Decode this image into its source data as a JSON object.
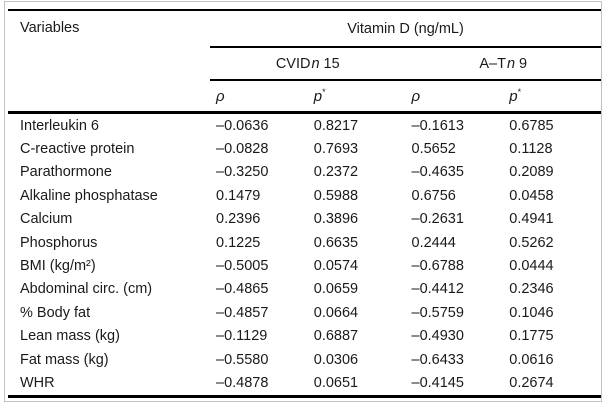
{
  "figure": {
    "kind": "correlation-table"
  },
  "table": {
    "variables_header": "Variables",
    "span_header": "Vitamin D (ng/mL)",
    "groups": [
      {
        "prefix": "CVID",
        "n": "n",
        "count": "15"
      },
      {
        "prefix": "A–T",
        "n": "n",
        "count": "9"
      }
    ],
    "stats": [
      {
        "sym": "ρ",
        "sup": ""
      },
      {
        "sym": "p",
        "sup": "*"
      },
      {
        "sym": "ρ",
        "sup": ""
      },
      {
        "sym": "p",
        "sup": "*"
      }
    ],
    "rows": [
      {
        "label": "Interleukin 6",
        "values": [
          "–0.0636",
          "0.8217",
          "–0.1613",
          "0.6785"
        ]
      },
      {
        "label": "C-reactive protein",
        "values": [
          "–0.0828",
          "0.7693",
          "0.5652",
          "0.1128"
        ]
      },
      {
        "label": "Parathormone",
        "values": [
          "–0.3250",
          "0.2372",
          "–0.4635",
          "0.2089"
        ]
      },
      {
        "label": "Alkaline phosphatase",
        "values": [
          "0.1479",
          "0.5988",
          "0.6756",
          "0.0458"
        ]
      },
      {
        "label": "Calcium",
        "values": [
          "0.2396",
          "0.3896",
          "–0.2631",
          "0.4941"
        ]
      },
      {
        "label": "Phosphorus",
        "values": [
          "0.1225",
          "0.6635",
          "0.2444",
          "0.5262"
        ]
      },
      {
        "label": "BMI (kg/m²)",
        "values": [
          "–0.5005",
          "0.0574",
          "–0.6788",
          "0.0444"
        ]
      },
      {
        "label": "Abdominal circ. (cm)",
        "values": [
          "–0.4865",
          "0.0659",
          "–0.4412",
          "0.2346"
        ]
      },
      {
        "label": "% Body fat",
        "values": [
          "–0.4857",
          "0.0664",
          "–0.5759",
          "0.1046"
        ]
      },
      {
        "label": "Lean mass (kg)",
        "values": [
          "–0.1129",
          "0.6887",
          "–0.4930",
          "0.1775"
        ]
      },
      {
        "label": "Fat mass (kg)",
        "values": [
          "–0.5580",
          "0.0306",
          "–0.6433",
          "0.0616"
        ]
      },
      {
        "label": "WHR",
        "values": [
          "–0.4878",
          "0.0651",
          "–0.4145",
          "0.2674"
        ]
      }
    ]
  },
  "colors": {
    "rule": "#000000",
    "text": "#1a1a1a",
    "background": "#ffffff",
    "frame_border": "#bfc3c3"
  }
}
